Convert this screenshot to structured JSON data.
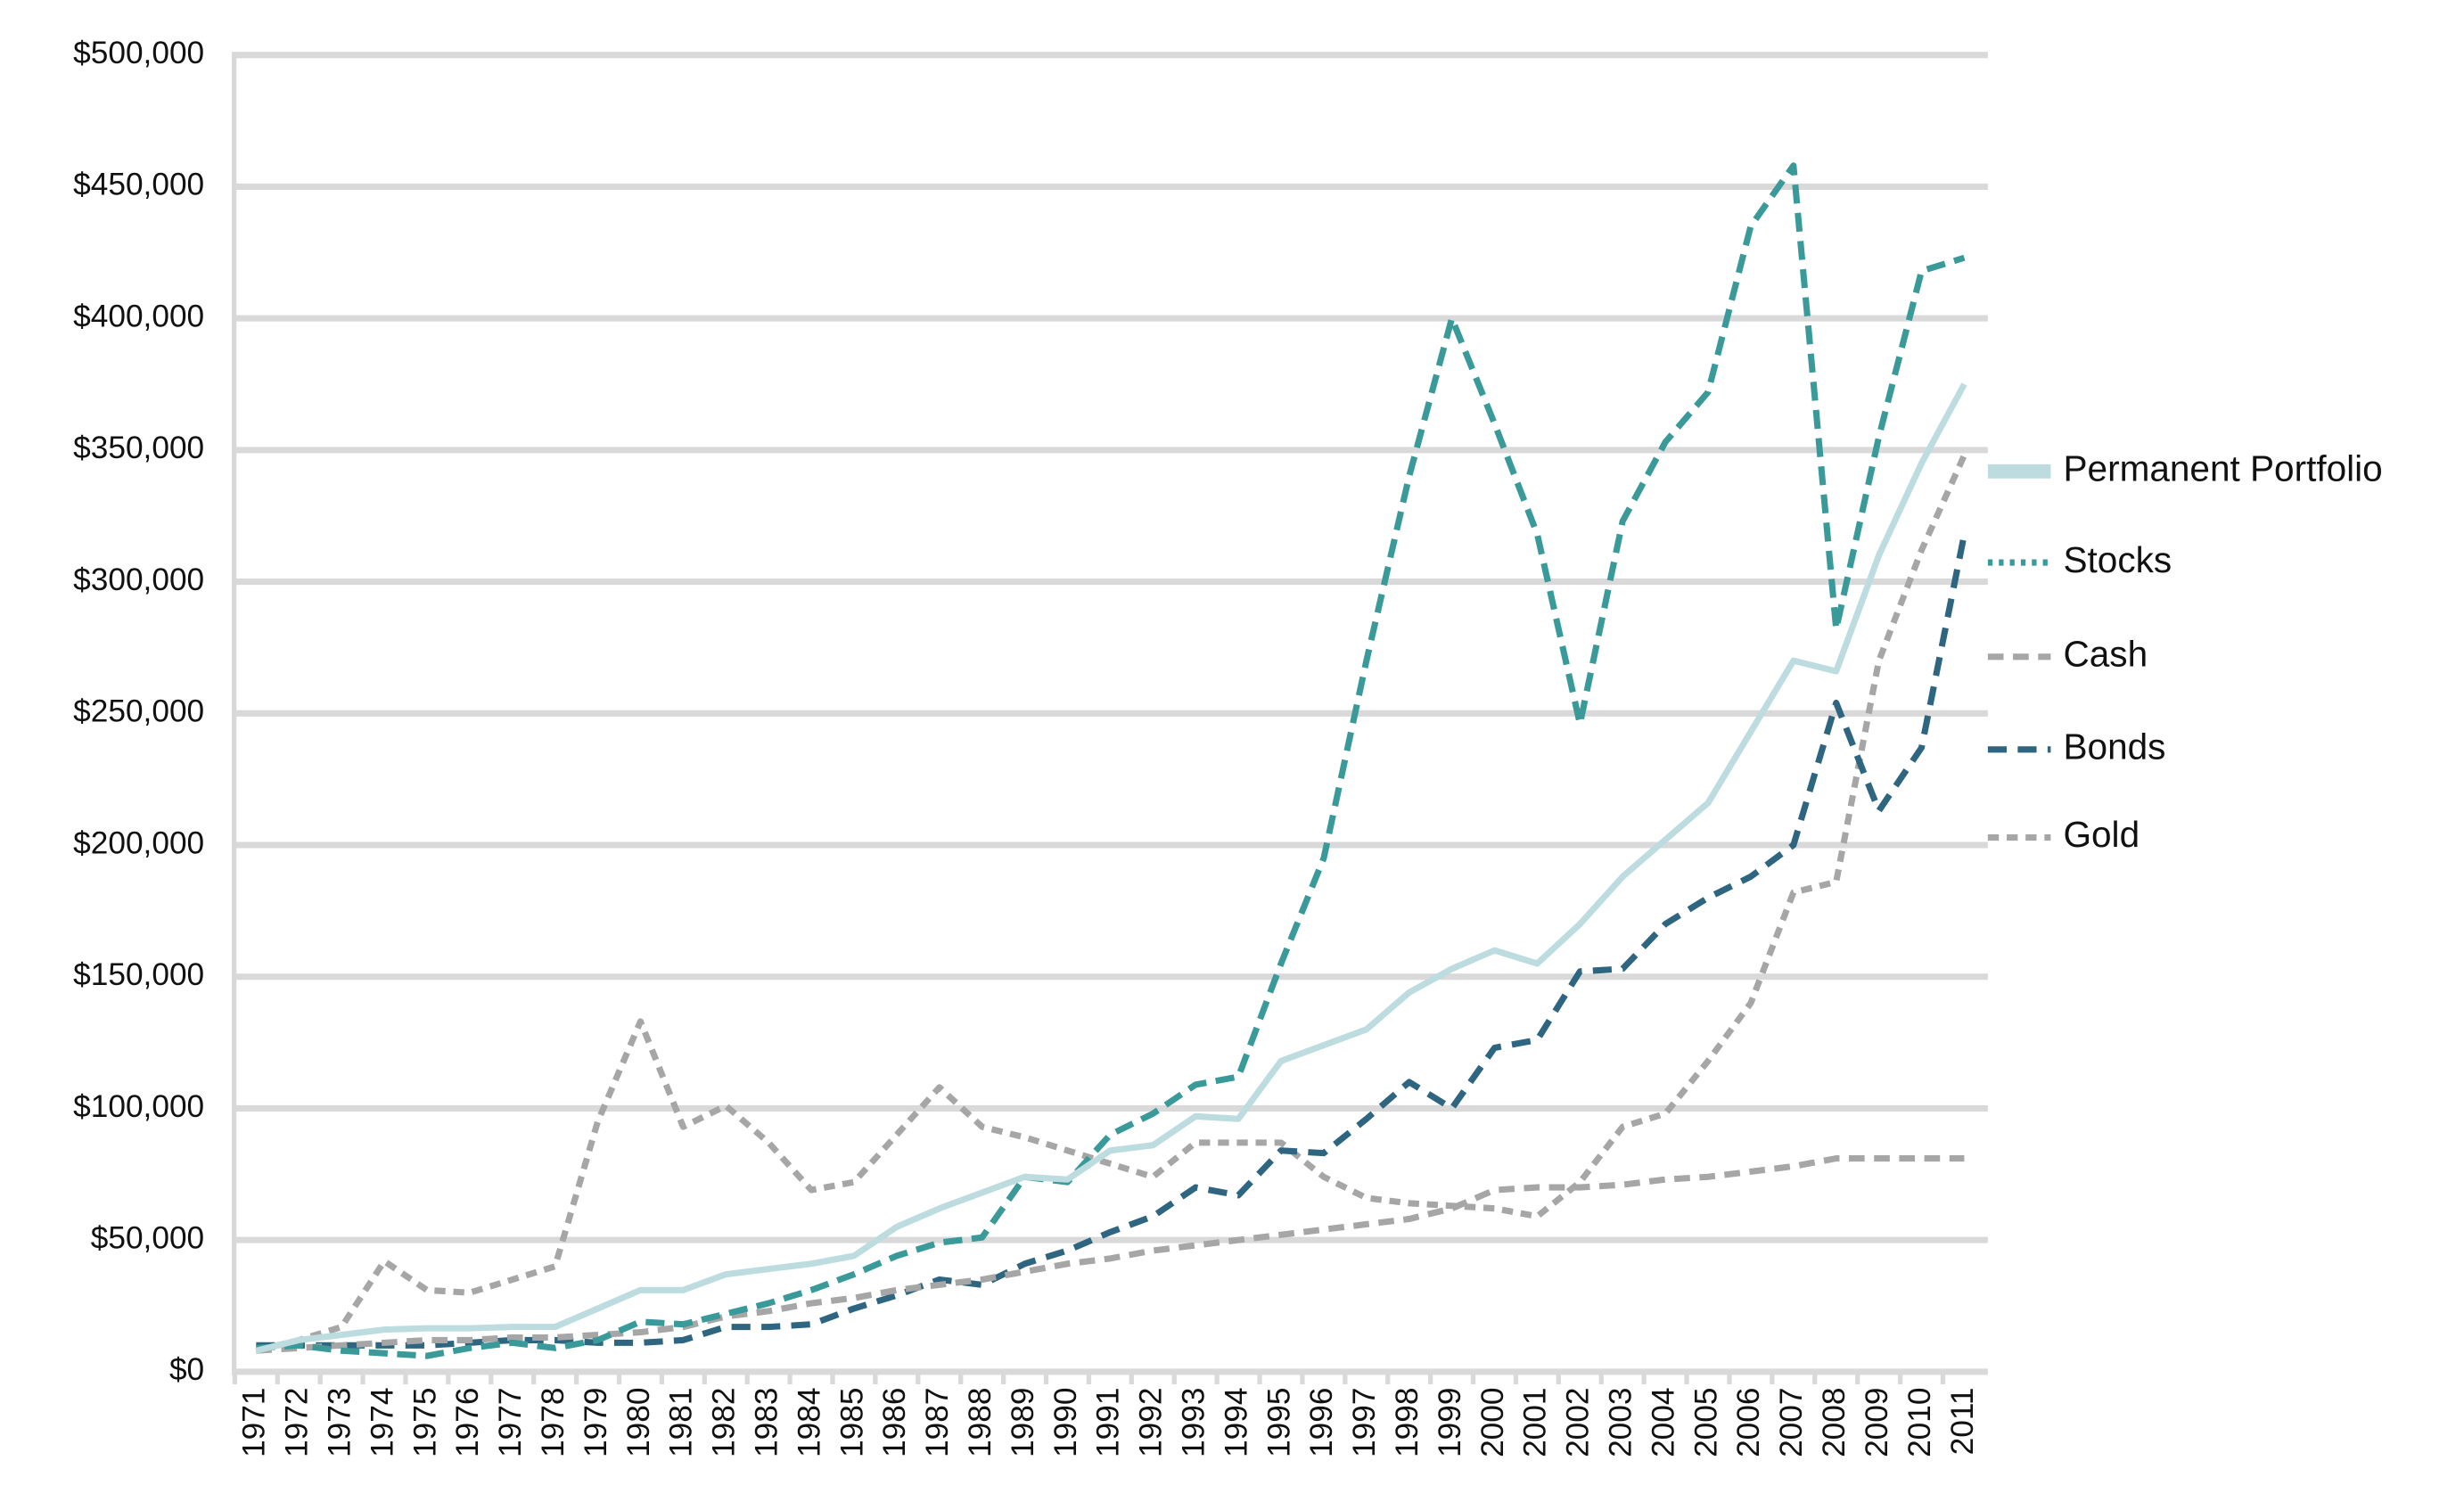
{
  "chart_data": {
    "type": "line",
    "categories": [
      "1971",
      "1972",
      "1973",
      "1974",
      "1975",
      "1976",
      "1977",
      "1978",
      "1979",
      "1980",
      "1981",
      "1982",
      "1983",
      "1984",
      "1985",
      "1986",
      "1987",
      "1988",
      "1989",
      "1990",
      "1991",
      "1992",
      "1993",
      "1994",
      "1995",
      "1996",
      "1997",
      "1998",
      "1999",
      "2000",
      "2001",
      "2002",
      "2003",
      "2004",
      "2005",
      "2006",
      "2007",
      "2008",
      "2009",
      "2010",
      "2011"
    ],
    "ylim": [
      0,
      500000
    ],
    "yticks": [
      {
        "value": 0,
        "label": "$0"
      },
      {
        "value": 50000,
        "label": "$50,000"
      },
      {
        "value": 100000,
        "label": "$100,000"
      },
      {
        "value": 150000,
        "label": "$150,000"
      },
      {
        "value": 200000,
        "label": "$200,000"
      },
      {
        "value": 250000,
        "label": "$250,000"
      },
      {
        "value": 300000,
        "label": "$300,000"
      },
      {
        "value": 350000,
        "label": "$350,000"
      },
      {
        "value": 400000,
        "label": "$400,000"
      },
      {
        "value": 450000,
        "label": "$450,000"
      },
      {
        "value": 500000,
        "label": "$500,000"
      }
    ],
    "grid": true,
    "legend": "right",
    "series": [
      {
        "name": "Permanent Portfolio",
        "color": "#bcdcdf",
        "values": [
          8000,
          12000,
          14000,
          16000,
          16500,
          16500,
          17000,
          17000,
          24000,
          31000,
          31000,
          37000,
          39000,
          41000,
          44000,
          55000,
          62000,
          68000,
          74000,
          73000,
          84000,
          86000,
          97000,
          96000,
          118000,
          124000,
          130000,
          144000,
          153000,
          160000,
          155000,
          170000,
          188000,
          202000,
          216000,
          243000,
          270000,
          266000,
          310000,
          345000,
          375000
        ]
      },
      {
        "name": "Stocks",
        "color": "#3a9a9a",
        "values": [
          9000,
          10000,
          8000,
          7000,
          6000,
          9000,
          11000,
          9000,
          12000,
          19000,
          18000,
          22000,
          26000,
          31000,
          37000,
          44000,
          49000,
          51000,
          74000,
          72000,
          90000,
          98000,
          109000,
          112000,
          155000,
          195000,
          270000,
          340000,
          400000,
          360000,
          318000,
          246000,
          323000,
          353000,
          372000,
          435000,
          458000,
          282000,
          355000,
          418000,
          423000
        ]
      },
      {
        "name": "Cash",
        "color": "#a6a6a6",
        "values": [
          8000,
          9000,
          10000,
          11000,
          12000,
          12000,
          13000,
          13000,
          14000,
          15000,
          17000,
          21000,
          23000,
          26000,
          28000,
          31000,
          33000,
          35000,
          38000,
          41000,
          43000,
          46000,
          48000,
          50000,
          52000,
          54000,
          56000,
          58000,
          62000,
          69000,
          70000,
          70000,
          71000,
          73000,
          74000,
          76000,
          78000,
          81000,
          81000,
          81000,
          81000
        ]
      },
      {
        "name": "Bonds",
        "color": "#2e6580",
        "values": [
          10000,
          10000,
          10000,
          10000,
          10000,
          11000,
          12000,
          12000,
          11000,
          11000,
          12000,
          17000,
          17000,
          18000,
          24000,
          29000,
          35000,
          33000,
          41000,
          46000,
          53000,
          59000,
          70000,
          67000,
          84000,
          83000,
          96000,
          110000,
          100000,
          123000,
          126000,
          152000,
          153000,
          170000,
          180000,
          188000,
          200000,
          254000,
          213000,
          237000,
          318000
        ]
      },
      {
        "name": "Gold",
        "color": "#a6a6a6",
        "values": [
          8000,
          12000,
          17000,
          42000,
          31000,
          30000,
          35000,
          40000,
          95000,
          133000,
          93000,
          101000,
          87000,
          69000,
          72000,
          90000,
          108000,
          93000,
          89000,
          84000,
          79000,
          74000,
          87000,
          87000,
          87000,
          74000,
          66000,
          64000,
          63000,
          62000,
          59000,
          72000,
          93000,
          98000,
          118000,
          140000,
          182000,
          186000,
          270000,
          312000,
          348000
        ]
      }
    ]
  }
}
